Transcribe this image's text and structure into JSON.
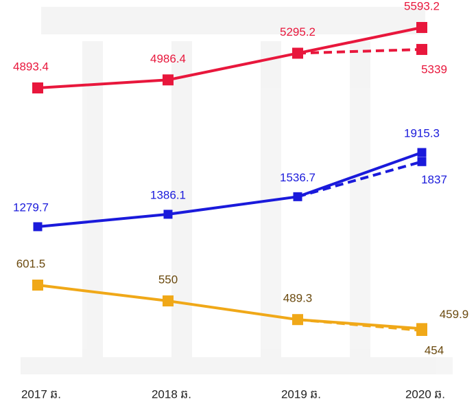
{
  "chart_data": {
    "type": "line",
    "categories": [
      "2017 ឆ.",
      "2018 ឆ.",
      "2019 ឆ.",
      "2020 ឆ."
    ],
    "series": [
      {
        "color": "#e8173c",
        "label_color": "#e8173c",
        "values": [
          4893.4,
          4986.4,
          5295.2,
          5593.2
        ],
        "alt_values": [
          null,
          null,
          null,
          5339.0
        ]
      },
      {
        "color": "#1a1adb",
        "label_color": "#1a1adb",
        "values": [
          1279.7,
          1386.1,
          1536.7,
          1915.3
        ],
        "alt_values": [
          null,
          null,
          null,
          1837.0
        ]
      },
      {
        "color": "#f0a818",
        "label_color": "#6b4a0f",
        "values": [
          601.5,
          550.0,
          489.3,
          459.9
        ],
        "alt_values": [
          null,
          null,
          null,
          454.0
        ]
      }
    ]
  }
}
